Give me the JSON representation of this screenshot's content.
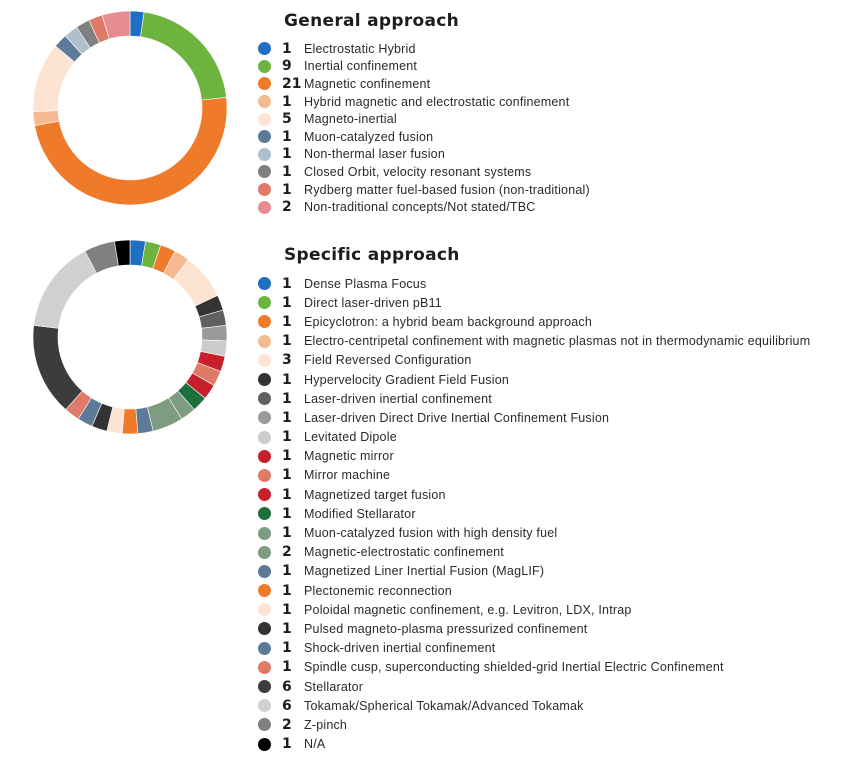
{
  "chart_data": [
    {
      "type": "pie",
      "title": "General approach",
      "series": [
        {
          "label": "Electrostatic Hybrid",
          "value": 1,
          "color": "#1f6fc4"
        },
        {
          "label": "Inertial confinement",
          "value": 9,
          "color": "#6db43e"
        },
        {
          "label": "Magnetic confinement",
          "value": 21,
          "color": "#ee7a2a"
        },
        {
          "label": "Hybrid magnetic and electrostatic confinement",
          "value": 1,
          "color": "#f4b990"
        },
        {
          "label": "Magneto-inertial",
          "value": 5,
          "color": "#fde3d1"
        },
        {
          "label": "Muon-catalyzed fusion",
          "value": 1,
          "color": "#5e7a99"
        },
        {
          "label": "Non-thermal laser fusion",
          "value": 1,
          "color": "#b0bfcc"
        },
        {
          "label": "Closed Orbit, velocity resonant systems",
          "value": 1,
          "color": "#808080"
        },
        {
          "label": "Rydberg matter fuel-based fusion (non-traditional)",
          "value": 1,
          "color": "#e07a68"
        },
        {
          "label": "Non-traditional concepts/Not stated/TBC",
          "value": 2,
          "color": "#e58d93"
        }
      ]
    },
    {
      "type": "pie",
      "title": "Specific approach",
      "series": [
        {
          "label": "Dense Plasma Focus",
          "value": 1,
          "color": "#1f6fc4"
        },
        {
          "label": "Direct laser-driven pB11",
          "value": 1,
          "color": "#6db43e"
        },
        {
          "label": "Epicyclotron: a hybrid beam background approach",
          "value": 1,
          "color": "#ee7a2a"
        },
        {
          "label": "Electro-centripetal confinement with magnetic plasmas not in thermodynamic equilibrium",
          "value": 1,
          "color": "#f4b990"
        },
        {
          "label": "Field Reversed Configuration",
          "value": 3,
          "color": "#fde3d1"
        },
        {
          "label": "Hypervelocity Gradient Field Fusion",
          "value": 1,
          "color": "#333333"
        },
        {
          "label": "Laser-driven inertial confinement",
          "value": 1,
          "color": "#606060"
        },
        {
          "label": "Laser-driven Direct Drive Inertial Confinement Fusion",
          "value": 1,
          "color": "#9a9a9a"
        },
        {
          "label": "Levitated Dipole",
          "value": 1,
          "color": "#cccccc"
        },
        {
          "label": "Magnetic mirror",
          "value": 1,
          "color": "#c8202a"
        },
        {
          "label": "Mirror machine",
          "value": 1,
          "color": "#e07a68"
        },
        {
          "label": "Magnetized target fusion",
          "value": 1,
          "color": "#c8202a"
        },
        {
          "label": "Modified Stellarator",
          "value": 1,
          "color": "#1e6f3e"
        },
        {
          "label": "Muon-catalyzed fusion with high density fuel",
          "value": 1,
          "color": "#7d9c82"
        },
        {
          "label": "Magnetic-electrostatic confinement",
          "value": 2,
          "color": "#7d9c82"
        },
        {
          "label": "Magnetized Liner Inertial Fusion (MagLIF)",
          "value": 1,
          "color": "#5e7a99"
        },
        {
          "label": "Plectonemic reconnection",
          "value": 1,
          "color": "#ee7a2a"
        },
        {
          "label": "Poloidal magnetic confinement, e.g. Levitron, LDX, Intrap",
          "value": 1,
          "color": "#fde3d1"
        },
        {
          "label": "Pulsed magneto-plasma pressurized confinement",
          "value": 1,
          "color": "#333333"
        },
        {
          "label": "Shock-driven inertial confinement",
          "value": 1,
          "color": "#5e7a99"
        },
        {
          "label": "Spindle cusp, superconducting shielded-grid Inertial Electric Confinement",
          "value": 1,
          "color": "#e07a68"
        },
        {
          "label": "Stellarator",
          "value": 6,
          "color": "#3c3c3c"
        },
        {
          "label": "Tokamak/Spherical Tokamak/Advanced Tokamak",
          "value": 6,
          "color": "#d0d0d0"
        },
        {
          "label": "Z-pinch",
          "value": 2,
          "color": "#808080"
        },
        {
          "label": "N/A",
          "value": 1,
          "color": "#000000"
        }
      ]
    }
  ]
}
